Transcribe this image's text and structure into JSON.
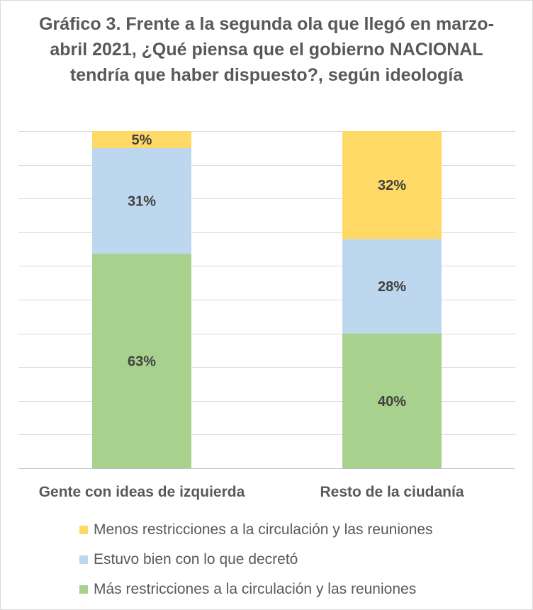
{
  "chart_data": {
    "type": "bar",
    "stacked": true,
    "percent": true,
    "title": "Gráfico 3. Frente a la segunda ola que llegó en marzo-abril 2021, ¿Qué piensa que el gobierno NACIONAL tendría que haber dispuesto?, según ideología",
    "categories": [
      "Gente con ideas de izquierda",
      "Resto de la ciudanía"
    ],
    "series": [
      {
        "name": "Más restricciones a la circulación y las reuniones",
        "values": [
          63,
          40
        ],
        "labels": [
          "63%",
          "40%"
        ],
        "color": "#A9D18E"
      },
      {
        "name": "Estuvo bien con lo que decretó",
        "values": [
          31,
          28
        ],
        "labels": [
          "31%",
          "28%"
        ],
        "color": "#BDD7EE"
      },
      {
        "name": "Menos restricciones a la circulación y las reuniones",
        "values": [
          5,
          32
        ],
        "labels": [
          "5%",
          "32%"
        ],
        "color": "#FFD966"
      }
    ],
    "legend_order": [
      2,
      1,
      0
    ],
    "legend_position": "bottom",
    "ylim": [
      0,
      100
    ],
    "grid": true
  }
}
